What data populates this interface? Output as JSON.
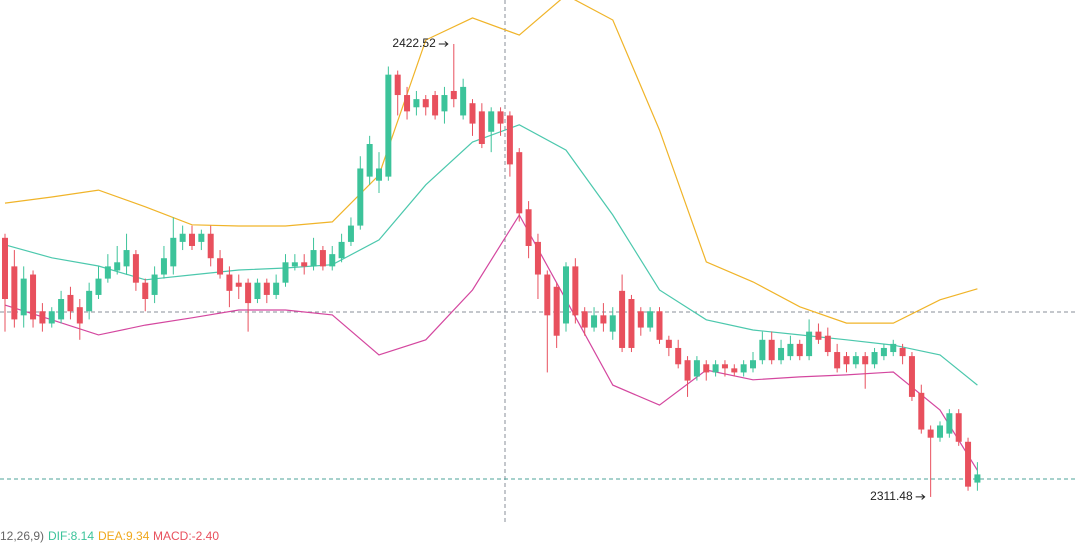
{
  "chart_data": {
    "type": "candlestick",
    "ylim": [
      2304.6,
      2433.3
    ],
    "up_color": "#3cc39a",
    "down_color": "#e8505d",
    "open": [
      2375,
      2368,
      2356,
      2366,
      2357,
      2354,
      2355,
      2361,
      2358,
      2357,
      2361,
      2365,
      2367,
      2368,
      2371,
      2364,
      2361,
      2366,
      2368,
      2374,
      2376,
      2374,
      2376,
      2370,
      2366,
      2364,
      2364,
      2360,
      2364,
      2361,
      2364,
      2368,
      2369,
      2368,
      2372,
      2368,
      2370,
      2374,
      2378,
      2390,
      2389,
      2390,
      2415,
      2410,
      2407,
      2409,
      2410,
      2406,
      2411,
      2405,
      2408,
      2406,
      2401,
      2406,
      2405,
      2396,
      2382,
      2374,
      2366,
      2363,
      2354,
      2368,
      2357,
      2353,
      2356,
      2352,
      2362,
      2360,
      2357,
      2353,
      2357,
      2350,
      2348,
      2345,
      2341,
      2344,
      2342,
      2344,
      2343,
      2342,
      2343,
      2345,
      2350,
      2345,
      2346,
      2349,
      2346,
      2352,
      2351,
      2347,
      2346,
      2344,
      2346,
      2344,
      2346,
      2347,
      2348,
      2346,
      2337,
      2328,
      2326,
      2327,
      2332,
      2325,
      2315
    ],
    "high": [
      2376,
      2372,
      2368,
      2367,
      2359,
      2358,
      2362,
      2363,
      2360,
      2364,
      2368,
      2371,
      2373,
      2376,
      2372,
      2365,
      2368,
      2373,
      2380,
      2378,
      2378,
      2377,
      2378,
      2372,
      2368,
      2366,
      2365,
      2365,
      2365,
      2366,
      2371,
      2371,
      2371,
      2375,
      2373,
      2373,
      2376,
      2380,
      2395,
      2400,
      2396,
      2417,
      2416,
      2412,
      2411,
      2410,
      2411,
      2412,
      2422.52,
      2414,
      2409,
      2408,
      2407,
      2407,
      2406,
      2397,
      2384,
      2376,
      2367,
      2364,
      2369,
      2370,
      2358,
      2358,
      2359,
      2358,
      2366,
      2361,
      2358,
      2358,
      2358,
      2351,
      2350,
      2346,
      2346,
      2345,
      2345,
      2345,
      2344,
      2345,
      2347,
      2352,
      2352,
      2350,
      2351,
      2350,
      2355,
      2354,
      2353,
      2349,
      2347,
      2347,
      2347,
      2348,
      2349,
      2350,
      2349,
      2347,
      2339,
      2329,
      2330,
      2333,
      2333,
      2326,
      2320
    ],
    "low": [
      2352,
      2353,
      2353,
      2353,
      2352,
      2353,
      2354,
      2355,
      2350,
      2355,
      2360,
      2364,
      2366,
      2366,
      2362,
      2357,
      2359,
      2365,
      2366,
      2372,
      2372,
      2372,
      2368,
      2365,
      2358,
      2360,
      2352,
      2359,
      2359,
      2360,
      2363,
      2367,
      2366,
      2367,
      2367,
      2367,
      2369,
      2373,
      2377,
      2388,
      2386,
      2389,
      2405,
      2404,
      2405,
      2405,
      2404,
      2403,
      2407,
      2404,
      2400,
      2397,
      2396,
      2400,
      2390,
      2379,
      2370,
      2360,
      2342,
      2348,
      2352,
      2354,
      2351,
      2352,
      2352,
      2350,
      2347,
      2347,
      2351,
      2352,
      2349,
      2346,
      2343,
      2336,
      2340,
      2340,
      2341,
      2341,
      2341,
      2341,
      2342,
      2344,
      2344,
      2344,
      2345,
      2345,
      2345,
      2349,
      2346,
      2342,
      2342,
      2343,
      2338,
      2343,
      2345,
      2346,
      2344,
      2335,
      2327,
      2311.48,
      2325,
      2326,
      2324,
      2313,
      2313
    ],
    "close": [
      2360,
      2355,
      2365,
      2355,
      2354,
      2357,
      2360,
      2357,
      2354,
      2362,
      2365,
      2368,
      2369,
      2372,
      2364,
      2360,
      2366,
      2370,
      2375,
      2376,
      2373,
      2376,
      2370,
      2366,
      2362,
      2363,
      2359,
      2364,
      2361,
      2364,
      2369,
      2369,
      2368,
      2372,
      2368,
      2371,
      2374,
      2378,
      2392,
      2398,
      2392,
      2415,
      2410,
      2406,
      2409,
      2407,
      2405,
      2410,
      2409,
      2412,
      2403,
      2398,
      2406,
      2403,
      2393,
      2381,
      2373,
      2366,
      2356,
      2351,
      2368,
      2356,
      2353,
      2356,
      2354,
      2356,
      2348,
      2348,
      2353,
      2357,
      2350,
      2348,
      2344,
      2340,
      2345,
      2342,
      2344,
      2343,
      2342,
      2344,
      2345,
      2350,
      2345,
      2348,
      2349,
      2346,
      2352,
      2350,
      2347,
      2343,
      2344,
      2346,
      2344,
      2347,
      2348,
      2349,
      2346,
      2336,
      2328,
      2326,
      2329,
      2332,
      2325,
      2314,
      2317
    ],
    "band_x": [
      0,
      5,
      10,
      15,
      20,
      25,
      30,
      35,
      40,
      45,
      50,
      55,
      60,
      65,
      70,
      75,
      80,
      85,
      90,
      95,
      100,
      104
    ],
    "bands": [
      {
        "color": "#f0b429",
        "values": [
          2383.5,
          2385.0,
          2386.7,
          2382.6,
          2378.2,
          2377.9,
          2377.9,
          2378.9,
          2390.4,
          2423.5,
          2428.9,
          2424.7,
          2434.5,
          2428.4,
          2401.4,
          2369.1,
          2364.2,
          2358.1,
          2354.1,
          2354.1,
          2359.8,
          2362.5
        ]
      },
      {
        "color": "#4cc8ad",
        "values": [
          2373.3,
          2370.1,
          2368.1,
          2364.7,
          2365.9,
          2367.1,
          2367.6,
          2368.4,
          2374.5,
          2388.0,
          2398.5,
          2402.7,
          2396.5,
          2380.6,
          2362.2,
          2354.9,
          2352.4,
          2351.2,
          2350.0,
          2348.7,
          2346.3,
          2338.9
        ]
      },
      {
        "color": "#d4479f",
        "values": [
          2358.5,
          2354.9,
          2351.2,
          2353.6,
          2355.4,
          2357.3,
          2357.3,
          2356.1,
          2346.3,
          2350.0,
          2362.2,
          2380.6,
          2359.8,
          2338.9,
          2334.0,
          2342.6,
          2340.2,
          2340.9,
          2341.4,
          2342.1,
          2332.8,
          2318.0
        ]
      }
    ],
    "indicator_legend": [
      {
        "text": "12,26,9)",
        "color": "#666666"
      },
      {
        "text": "DIF:8.14",
        "color": "#3cc39a"
      },
      {
        "text": "DEA:9.34",
        "color": "#f0a81c"
      },
      {
        "text": "MACD:-2.40",
        "color": "#e8505d"
      }
    ]
  }
}
